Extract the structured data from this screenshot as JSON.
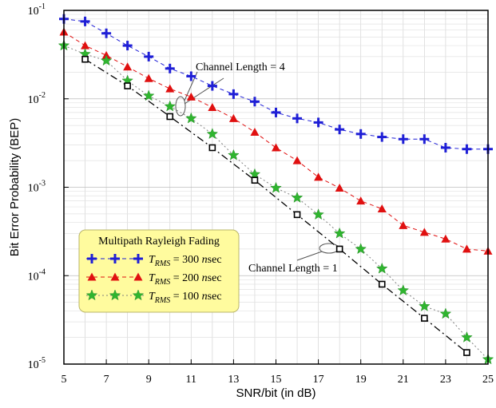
{
  "chart_data": {
    "type": "line",
    "xlabel": "SNR/bit (in dB)",
    "ylabel": "Bit Error Probability (BEP)",
    "x_ticks": [
      "5",
      "7",
      "9",
      "11",
      "13",
      "15",
      "17",
      "19",
      "21",
      "23",
      "25"
    ],
    "xlim": [
      5,
      25
    ],
    "ylim": [
      1e-05,
      0.1
    ],
    "y_scale": "log",
    "y_ticks": [
      {
        "base": "10",
        "exp": "-1"
      },
      {
        "base": "10",
        "exp": "-2"
      },
      {
        "base": "10",
        "exp": "-3"
      },
      {
        "base": "10",
        "exp": "-4"
      },
      {
        "base": "10",
        "exp": "-5"
      }
    ],
    "grid": true,
    "legend": {
      "title": "Multipath Rayleigh Fading",
      "placement": "lower-left",
      "entries": [
        {
          "prefix": "T",
          "sub": "RMS",
          "value": " = 300 ",
          "unit_italic": "n",
          "unit": "sec"
        },
        {
          "prefix": "T",
          "sub": "RMS",
          "value": " = 200 ",
          "unit_italic": "n",
          "unit": "sec"
        },
        {
          "prefix": "T",
          "sub": "RMS",
          "value": " = 100 ",
          "unit_italic": "n",
          "unit": "sec"
        }
      ]
    },
    "annotations": [
      {
        "text": "Channel Length = 4"
      },
      {
        "text": "Channel Length = 1"
      }
    ],
    "series": [
      {
        "marker": "plus",
        "color": "#1f1fd6",
        "line": "dashed",
        "x": [
          5,
          6,
          7,
          8,
          9,
          10,
          11,
          12,
          13,
          14,
          15,
          16,
          17,
          18,
          19,
          20,
          21,
          22,
          23,
          24,
          25
        ],
        "values": [
          0.08,
          0.075,
          0.055,
          0.04,
          0.03,
          0.022,
          0.018,
          0.014,
          0.0113,
          0.0093,
          0.007,
          0.006,
          0.0054,
          0.0045,
          0.004,
          0.0037,
          0.0035,
          0.0035,
          0.0028,
          0.0027,
          0.0027
        ]
      },
      {
        "marker": "triangle",
        "color": "#e01010",
        "line": "dashed",
        "x": [
          5,
          6,
          7,
          8,
          9,
          10,
          11,
          12,
          13,
          14,
          15,
          16,
          17,
          18,
          19,
          20,
          21,
          22,
          23,
          24,
          25
        ],
        "values": [
          0.057,
          0.04,
          0.031,
          0.023,
          0.017,
          0.013,
          0.0105,
          0.008,
          0.006,
          0.0042,
          0.0028,
          0.002,
          0.0013,
          0.00098,
          0.0007,
          0.00057,
          0.00037,
          0.00031,
          0.00026,
          0.0002,
          0.00019
        ]
      },
      {
        "marker": "star",
        "color": "#2fb52f",
        "line": "dotted",
        "x": [
          5,
          6,
          7,
          8,
          9,
          10,
          11,
          12,
          13,
          14,
          15,
          16,
          17,
          18,
          19,
          20,
          21,
          22,
          23,
          24,
          25
        ],
        "values": [
          0.04,
          0.032,
          0.027,
          0.016,
          0.0108,
          0.0082,
          0.006,
          0.004,
          0.0023,
          0.0014,
          0.00098,
          0.00076,
          0.00049,
          0.0003,
          0.0002,
          0.00012,
          6.8e-05,
          4.5e-05,
          3.7e-05,
          2e-05,
          1.13e-05
        ]
      },
      {
        "marker": "square",
        "color": "#000000",
        "line": "dashdot",
        "x": [
          6,
          8,
          10,
          12,
          14,
          16,
          18,
          20,
          22,
          24
        ],
        "values": [
          0.028,
          0.014,
          0.0063,
          0.0028,
          0.0012,
          0.00049,
          0.0002,
          8e-05,
          3.3e-05,
          1.35e-05
        ]
      }
    ]
  }
}
